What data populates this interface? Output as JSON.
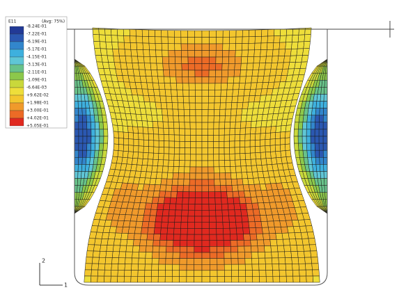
{
  "legend": {
    "title": "E11",
    "subtitle": "(Avg: 75%)",
    "labels": [
      "-8.24E-01",
      "-7.22E-01",
      "-6.19E-01",
      "-5.17E-01",
      "-4.15E-01",
      "-3.13E-01",
      "-2.11E-01",
      "-1.09E-01",
      "-6.64E-03",
      "+9.62E-02",
      "+1.98E-01",
      "+3.00E-01",
      "+4.02E-01",
      "+5.05E-01"
    ],
    "colors": [
      "#223a96",
      "#2b58b1",
      "#3286cc",
      "#3eb0de",
      "#5fc6d6",
      "#68c28a",
      "#8cc84b",
      "#c9d83b",
      "#eede3a",
      "#f3c62e",
      "#f09a2b",
      "#ec6b26",
      "#e0291f"
    ]
  },
  "triad": {
    "axis_1": "1",
    "axis_2": "2"
  }
}
